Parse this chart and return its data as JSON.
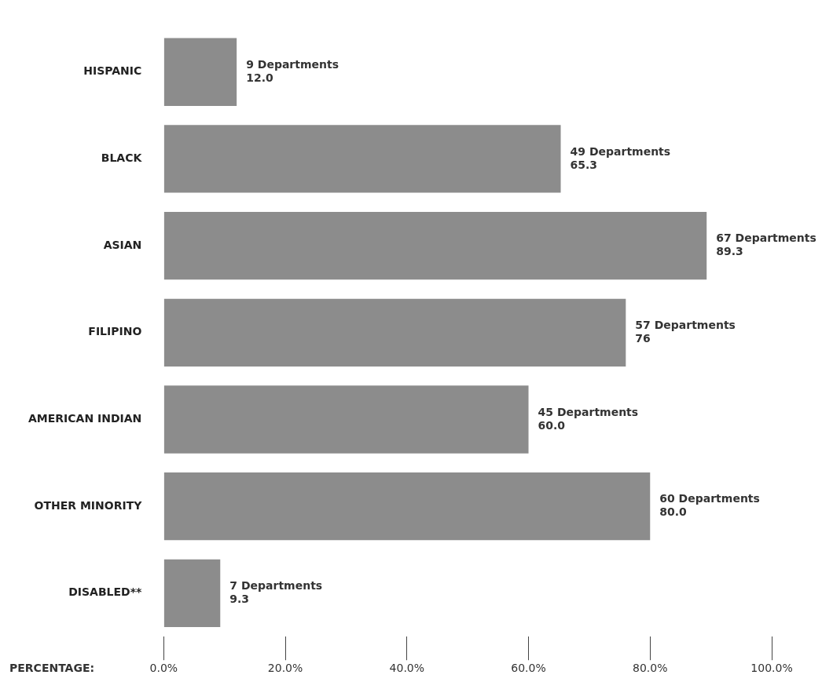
{
  "chart_data": {
    "type": "bar",
    "orientation": "horizontal",
    "xlabel": "PERCENTAGE:",
    "categories": [
      "HISPANIC",
      "BLACK",
      "ASIAN",
      "FILIPINO",
      "AMERICAN INDIAN",
      "OTHER MINORITY",
      "DISABLED**"
    ],
    "values": [
      12.0,
      65.3,
      89.3,
      76,
      60.0,
      80.0,
      9.3
    ],
    "value_labels": [
      "9 Departments\n12.0",
      "49 Departments\n65.3",
      "67 Departments\n89.3",
      "57 Departments\n76",
      "45 Departments\n60.0",
      "60 Departments\n80.0",
      "7 Departments\n9.3"
    ],
    "color": "#8c8c8c",
    "xlim": [
      0,
      100
    ],
    "xticks": [
      {
        "value": 0,
        "label": "0.0%"
      },
      {
        "value": 20,
        "label": "20.0%"
      },
      {
        "value": 40,
        "label": "40.0%"
      },
      {
        "value": 60,
        "label": "60.0%"
      },
      {
        "value": 80,
        "label": "80.0%"
      },
      {
        "value": 100,
        "label": "100.0%"
      }
    ],
    "grid": false,
    "legend": false
  }
}
